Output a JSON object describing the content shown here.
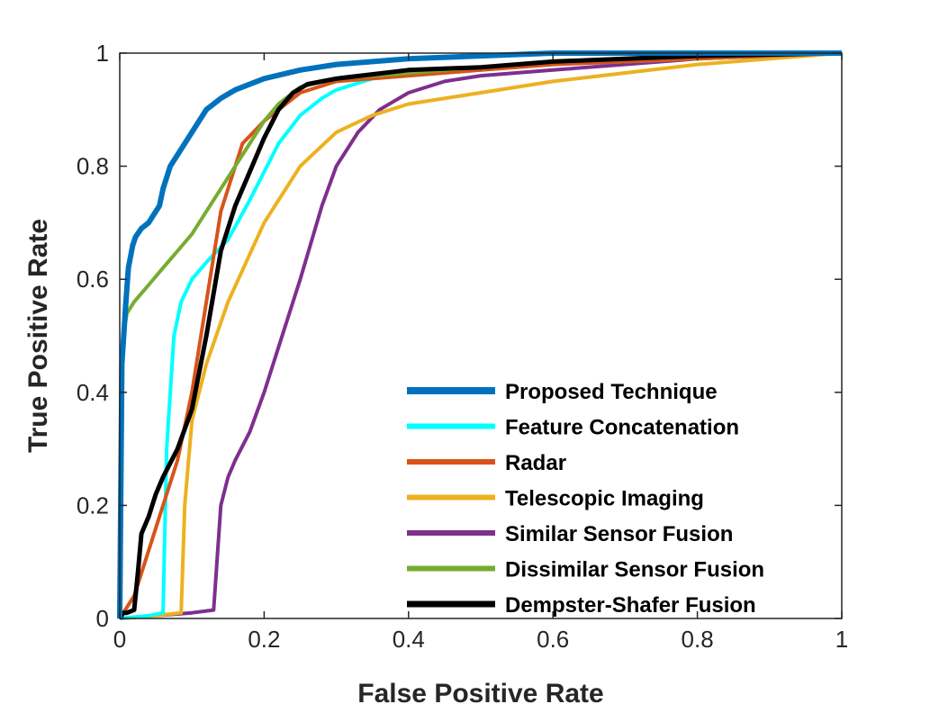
{
  "chart_data": {
    "type": "line",
    "title": "",
    "xlabel": "False Positive Rate",
    "ylabel": "True Positive Rate",
    "xlim": [
      0,
      1
    ],
    "ylim": [
      0,
      1
    ],
    "xticks": [
      0,
      0.2,
      0.4,
      0.6,
      0.8,
      1
    ],
    "yticks": [
      0,
      0.2,
      0.4,
      0.6,
      0.8,
      1
    ],
    "xtick_labels": [
      "0",
      "0.2",
      "0.4",
      "0.6",
      "0.8",
      "1"
    ],
    "ytick_labels": [
      "0",
      "0.2",
      "0.4",
      "0.6",
      "0.8",
      "1"
    ],
    "grid": false,
    "legend_position": "bottom-right",
    "series": [
      {
        "name": "Proposed Technique",
        "color": "#0072BD",
        "x": [
          0,
          0.003,
          0.008,
          0.012,
          0.018,
          0.022,
          0.03,
          0.04,
          0.05,
          0.055,
          0.06,
          0.065,
          0.07,
          0.08,
          0.1,
          0.12,
          0.14,
          0.16,
          0.2,
          0.25,
          0.3,
          0.4,
          0.5,
          0.6,
          0.8,
          1.0
        ],
        "y": [
          0,
          0.45,
          0.55,
          0.62,
          0.66,
          0.675,
          0.69,
          0.7,
          0.72,
          0.73,
          0.76,
          0.78,
          0.8,
          0.82,
          0.86,
          0.9,
          0.92,
          0.935,
          0.955,
          0.97,
          0.98,
          0.99,
          0.995,
          1.0,
          1.0,
          1.0
        ]
      },
      {
        "name": "Feature Concatenation",
        "color": "#00FFFF",
        "x": [
          0,
          0.04,
          0.06,
          0.065,
          0.075,
          0.085,
          0.1,
          0.12,
          0.15,
          0.18,
          0.2,
          0.22,
          0.25,
          0.28,
          0.3,
          0.35,
          0.4,
          0.5,
          0.6,
          0.8,
          1.0
        ],
        "y": [
          0,
          0.005,
          0.01,
          0.3,
          0.5,
          0.56,
          0.6,
          0.63,
          0.67,
          0.74,
          0.79,
          0.84,
          0.89,
          0.92,
          0.935,
          0.955,
          0.96,
          0.97,
          0.98,
          0.99,
          1.0
        ]
      },
      {
        "name": "Radar",
        "color": "#D95319",
        "x": [
          0,
          0.02,
          0.04,
          0.06,
          0.08,
          0.1,
          0.12,
          0.14,
          0.15,
          0.16,
          0.17,
          0.2,
          0.22,
          0.25,
          0.3,
          0.4,
          0.5,
          0.6,
          0.8,
          1.0
        ],
        "y": [
          0,
          0.04,
          0.12,
          0.2,
          0.28,
          0.4,
          0.56,
          0.72,
          0.76,
          0.8,
          0.84,
          0.88,
          0.9,
          0.93,
          0.95,
          0.96,
          0.97,
          0.98,
          0.99,
          1.0
        ]
      },
      {
        "name": "Telescopic Imaging",
        "color": "#EDB120",
        "x": [
          0,
          0.05,
          0.085,
          0.09,
          0.1,
          0.12,
          0.15,
          0.2,
          0.25,
          0.3,
          0.35,
          0.4,
          0.5,
          0.6,
          0.7,
          0.8,
          0.9,
          1.0
        ],
        "y": [
          0,
          0.005,
          0.01,
          0.2,
          0.35,
          0.45,
          0.56,
          0.7,
          0.8,
          0.86,
          0.89,
          0.91,
          0.93,
          0.95,
          0.965,
          0.98,
          0.99,
          1.0
        ]
      },
      {
        "name": "Similar Sensor Fusion",
        "color": "#7E2F8E",
        "x": [
          0,
          0.05,
          0.1,
          0.13,
          0.14,
          0.15,
          0.16,
          0.18,
          0.2,
          0.22,
          0.25,
          0.28,
          0.3,
          0.33,
          0.36,
          0.4,
          0.45,
          0.5,
          0.6,
          0.8,
          1.0
        ],
        "y": [
          0,
          0.005,
          0.01,
          0.015,
          0.2,
          0.25,
          0.28,
          0.33,
          0.4,
          0.48,
          0.6,
          0.73,
          0.8,
          0.86,
          0.9,
          0.93,
          0.95,
          0.96,
          0.97,
          0.99,
          1.0
        ]
      },
      {
        "name": "Dissimilar Sensor Fusion",
        "color": "#77AC30",
        "x": [
          0,
          0.002,
          0.005,
          0.01,
          0.02,
          0.04,
          0.06,
          0.08,
          0.1,
          0.12,
          0.14,
          0.16,
          0.18,
          0.2,
          0.22,
          0.25,
          0.3,
          0.4,
          0.5,
          0.6,
          0.8,
          1.0
        ],
        "y": [
          0,
          0.45,
          0.5,
          0.54,
          0.56,
          0.59,
          0.62,
          0.65,
          0.68,
          0.72,
          0.76,
          0.8,
          0.84,
          0.88,
          0.91,
          0.94,
          0.955,
          0.965,
          0.975,
          0.985,
          0.995,
          1.0
        ]
      },
      {
        "name": "Dempster-Shafer Fusion",
        "color": "#000000",
        "x": [
          0,
          0.005,
          0.01,
          0.02,
          0.025,
          0.03,
          0.04,
          0.05,
          0.06,
          0.08,
          0.1,
          0.12,
          0.14,
          0.16,
          0.18,
          0.2,
          0.22,
          0.24,
          0.26,
          0.3,
          0.4,
          0.5,
          0.6,
          0.7,
          0.8,
          1.0
        ],
        "y": [
          0,
          0.01,
          0.01,
          0.015,
          0.08,
          0.15,
          0.18,
          0.22,
          0.25,
          0.3,
          0.37,
          0.5,
          0.65,
          0.73,
          0.79,
          0.85,
          0.9,
          0.93,
          0.945,
          0.955,
          0.97,
          0.975,
          0.985,
          0.99,
          0.995,
          1.0
        ]
      }
    ]
  }
}
